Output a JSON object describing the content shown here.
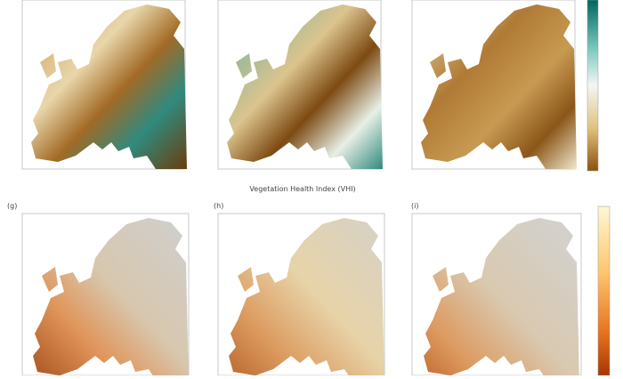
{
  "figure": {
    "row_caption": "Vegetation Health Index (VHI)",
    "panels": [
      {
        "label": "(g)"
      },
      {
        "label": "(h)"
      },
      {
        "label": "(i)"
      }
    ]
  }
}
